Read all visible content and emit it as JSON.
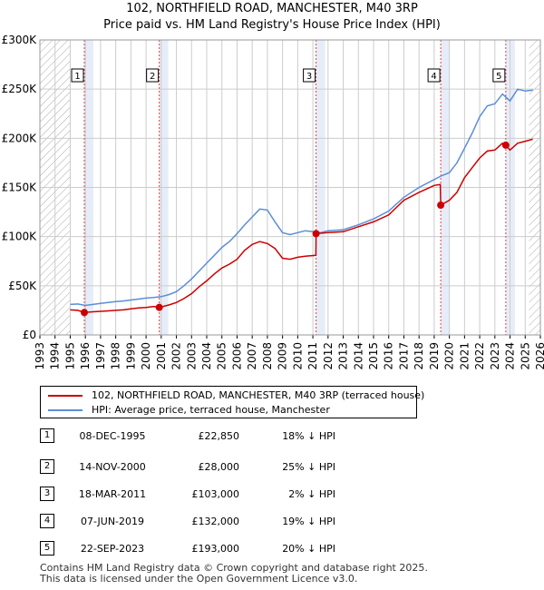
{
  "chart_data": {
    "type": "line",
    "title": "102, NORTHFIELD ROAD, MANCHESTER, M40 3RP",
    "subtitle": "Price paid vs. HM Land Registry's House Price Index (HPI)",
    "xlim": [
      1993,
      2026
    ],
    "ylim": [
      0,
      300000
    ],
    "yticks": [
      {
        "value": 0,
        "label": "£0"
      },
      {
        "value": 50000,
        "label": "£50K"
      },
      {
        "value": 100000,
        "label": "£100K"
      },
      {
        "value": 150000,
        "label": "£150K"
      },
      {
        "value": 200000,
        "label": "£200K"
      },
      {
        "value": 250000,
        "label": "£250K"
      },
      {
        "value": 300000,
        "label": "£300K"
      }
    ],
    "xticks": [
      "1993",
      "1994",
      "1995",
      "1996",
      "1997",
      "1998",
      "1999",
      "2000",
      "2001",
      "2002",
      "2003",
      "2004",
      "2005",
      "2006",
      "2007",
      "2008",
      "2009",
      "2010",
      "2011",
      "2012",
      "2013",
      "2014",
      "2015",
      "2016",
      "2017",
      "2018",
      "2019",
      "2020",
      "2021",
      "2022",
      "2023",
      "2024",
      "2025",
      "2026"
    ],
    "hatch_ranges": [
      [
        1993,
        1995.0
      ],
      [
        2025.25,
        2026
      ]
    ],
    "series": [
      {
        "name": "102, NORTHFIELD ROAD, MANCHESTER, M40 3RP (terraced house)",
        "color": "#cc0000",
        "points": [
          [
            1995.0,
            25500
          ],
          [
            1995.5,
            25000
          ],
          [
            1995.93,
            22850
          ],
          [
            1996.5,
            23500
          ],
          [
            1997,
            24000
          ],
          [
            1997.5,
            24500
          ],
          [
            1998,
            25000
          ],
          [
            1998.5,
            25500
          ],
          [
            1999,
            26500
          ],
          [
            1999.5,
            27500
          ],
          [
            2000,
            28000
          ],
          [
            2000.5,
            29000
          ],
          [
            2000.87,
            28000
          ],
          [
            2001.5,
            30500
          ],
          [
            2002,
            33000
          ],
          [
            2002.5,
            37000
          ],
          [
            2003,
            42000
          ],
          [
            2003.5,
            49000
          ],
          [
            2004,
            55000
          ],
          [
            2004.5,
            62000
          ],
          [
            2005,
            68000
          ],
          [
            2005.5,
            72000
          ],
          [
            2006,
            77000
          ],
          [
            2006.5,
            86000
          ],
          [
            2007,
            92000
          ],
          [
            2007.5,
            95000
          ],
          [
            2008,
            93000
          ],
          [
            2008.5,
            88000
          ],
          [
            2009,
            78000
          ],
          [
            2009.5,
            77000
          ],
          [
            2010,
            79000
          ],
          [
            2010.5,
            80000
          ],
          [
            2011.2,
            81000
          ],
          [
            2011.21,
            103000
          ],
          [
            2012,
            104000
          ],
          [
            2013,
            105000
          ],
          [
            2014,
            110000
          ],
          [
            2015,
            115000
          ],
          [
            2016,
            122000
          ],
          [
            2017,
            137000
          ],
          [
            2018,
            145000
          ],
          [
            2019,
            152000
          ],
          [
            2019.4,
            153000
          ],
          [
            2019.43,
            132000
          ],
          [
            2020,
            137000
          ],
          [
            2020.5,
            145000
          ],
          [
            2021,
            160000
          ],
          [
            2021.5,
            170000
          ],
          [
            2022,
            180000
          ],
          [
            2022.5,
            187000
          ],
          [
            2023.0,
            188000
          ],
          [
            2023.5,
            195000
          ],
          [
            2023.72,
            193000
          ],
          [
            2024,
            188000
          ],
          [
            2024.5,
            195000
          ],
          [
            2025,
            197000
          ],
          [
            2025.5,
            199000
          ]
        ]
      },
      {
        "name": "HPI: Average price, terraced house, Manchester",
        "color": "#5b8ed6",
        "points": [
          [
            1995.0,
            31000
          ],
          [
            1995.5,
            31500
          ],
          [
            1996,
            30000
          ],
          [
            1996.5,
            31000
          ],
          [
            1997,
            32000
          ],
          [
            1997.5,
            33000
          ],
          [
            1998,
            34000
          ],
          [
            1998.5,
            34500
          ],
          [
            1999,
            35500
          ],
          [
            1999.5,
            36500
          ],
          [
            2000,
            37500
          ],
          [
            2000.5,
            38000
          ],
          [
            2001,
            39000
          ],
          [
            2001.5,
            41000
          ],
          [
            2002,
            44000
          ],
          [
            2002.5,
            50000
          ],
          [
            2003,
            57000
          ],
          [
            2003.5,
            65000
          ],
          [
            2004,
            73000
          ],
          [
            2004.5,
            81000
          ],
          [
            2005,
            89000
          ],
          [
            2005.5,
            95000
          ],
          [
            2006,
            103000
          ],
          [
            2006.5,
            112000
          ],
          [
            2007,
            120000
          ],
          [
            2007.5,
            128000
          ],
          [
            2008,
            127000
          ],
          [
            2008.5,
            115000
          ],
          [
            2009,
            104000
          ],
          [
            2009.5,
            102000
          ],
          [
            2010,
            104000
          ],
          [
            2010.5,
            106000
          ],
          [
            2011,
            105000
          ],
          [
            2011.5,
            104000
          ],
          [
            2012,
            106000
          ],
          [
            2013,
            107000
          ],
          [
            2014,
            112000
          ],
          [
            2015,
            118000
          ],
          [
            2016,
            126000
          ],
          [
            2017,
            140000
          ],
          [
            2018,
            150000
          ],
          [
            2019,
            158000
          ],
          [
            2019.5,
            162000
          ],
          [
            2020,
            165000
          ],
          [
            2020.5,
            175000
          ],
          [
            2021,
            190000
          ],
          [
            2021.5,
            205000
          ],
          [
            2022,
            222000
          ],
          [
            2022.5,
            233000
          ],
          [
            2023,
            235000
          ],
          [
            2023.5,
            245000
          ],
          [
            2024,
            238000
          ],
          [
            2024.5,
            250000
          ],
          [
            2025,
            248000
          ],
          [
            2025.5,
            249000
          ]
        ]
      }
    ],
    "markers": [
      {
        "id": "1",
        "x": 1995.93,
        "y": 22850
      },
      {
        "id": "2",
        "x": 2000.87,
        "y": 28000
      },
      {
        "id": "3",
        "x": 2011.21,
        "y": 103000
      },
      {
        "id": "4",
        "x": 2019.43,
        "y": 132000
      },
      {
        "id": "5",
        "x": 2023.72,
        "y": 193000
      }
    ],
    "colors": {
      "property": "#cc0000",
      "hpi": "#5b8ed6",
      "band": "#dde5f5",
      "grid": "#cccccc",
      "hatch": "#aaaaaa",
      "marker_line": "#dd4444"
    }
  },
  "legend": {
    "property_label": "102, NORTHFIELD ROAD, MANCHESTER, M40 3RP (terraced house)",
    "hpi_label": "HPI: Average price, terraced house, Manchester"
  },
  "transactions": [
    {
      "num": "1",
      "date": "08-DEC-1995",
      "price": "£22,850",
      "hpi": "18% ↓ HPI"
    },
    {
      "num": "2",
      "date": "14-NOV-2000",
      "price": "£28,000",
      "hpi": "25% ↓ HPI"
    },
    {
      "num": "3",
      "date": "18-MAR-2011",
      "price": "£103,000",
      "hpi": "2% ↓ HPI"
    },
    {
      "num": "4",
      "date": "07-JUN-2019",
      "price": "£132,000",
      "hpi": "19% ↓ HPI"
    },
    {
      "num": "5",
      "date": "22-SEP-2023",
      "price": "£193,000",
      "hpi": "20% ↓ HPI"
    }
  ],
  "footer": {
    "line1": "Contains HM Land Registry data © Crown copyright and database right 2025.",
    "line2": "This data is licensed under the Open Government Licence v3.0."
  }
}
